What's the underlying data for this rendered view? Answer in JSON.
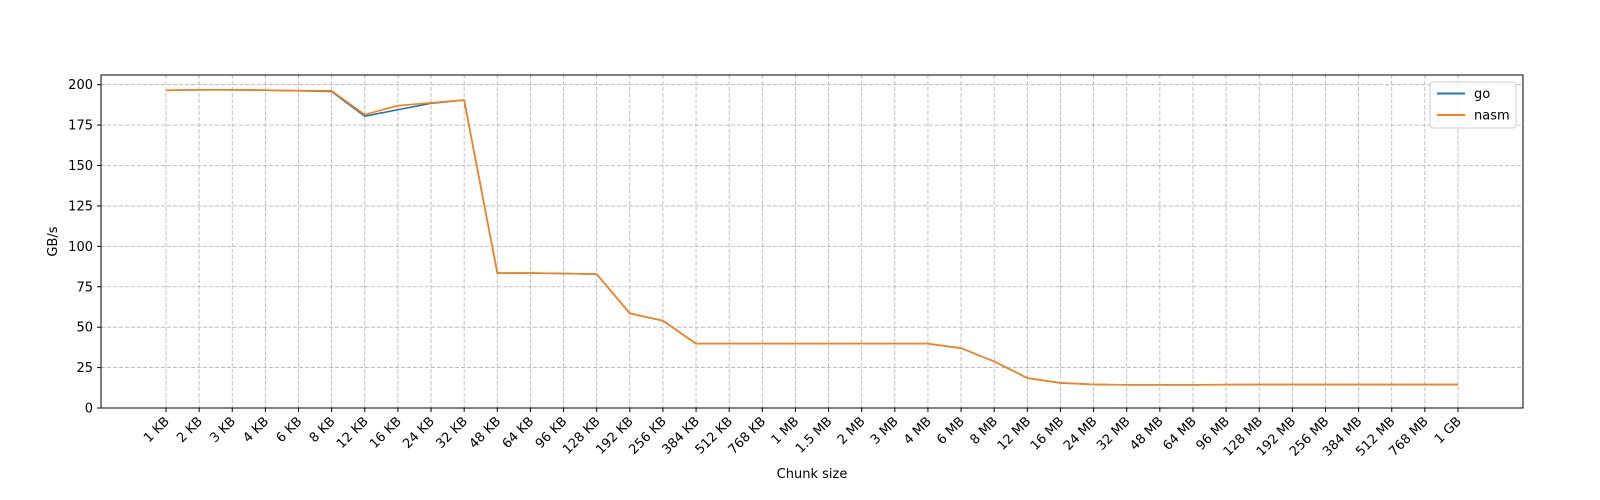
{
  "chart_data": {
    "type": "line",
    "title": "",
    "xlabel": "Chunk size",
    "ylabel": "GB/s",
    "ylim": [
      0,
      206
    ],
    "yticks": [
      0,
      25,
      50,
      75,
      100,
      125,
      150,
      175,
      200
    ],
    "grid": true,
    "legend_position": "top-right",
    "categories": [
      "1 KB",
      "2 KB",
      "3 KB",
      "4 KB",
      "6 KB",
      "8 KB",
      "12 KB",
      "16 KB",
      "24 KB",
      "32 KB",
      "48 KB",
      "64 KB",
      "96 KB",
      "128 KB",
      "192 KB",
      "256 KB",
      "384 KB",
      "512 KB",
      "768 KB",
      "1 MB",
      "1.5 MB",
      "2 MB",
      "3 MB",
      "4 MB",
      "6 MB",
      "8 MB",
      "12 MB",
      "16 MB",
      "24 MB",
      "32 MB",
      "48 MB",
      "64 MB",
      "96 MB",
      "128 MB",
      "192 MB",
      "256 MB",
      "384 MB",
      "512 MB",
      "768 MB",
      "1 GB"
    ],
    "series": [
      {
        "name": "go",
        "color": "#1f77b4",
        "values": [
          196.5,
          196.8,
          196.8,
          196.6,
          196.2,
          195.8,
          180.5,
          184.5,
          188.5,
          190.5,
          83.5,
          83.5,
          83.2,
          82.8,
          58.5,
          54.0,
          39.8,
          39.8,
          39.8,
          39.8,
          39.8,
          39.8,
          39.8,
          39.8,
          37.0,
          28.8,
          18.5,
          15.5,
          14.6,
          14.3,
          14.3,
          14.3,
          14.4,
          14.5,
          14.5,
          14.5,
          14.5,
          14.5,
          14.5,
          14.5
        ]
      },
      {
        "name": "nasm",
        "color": "#ff7f0e",
        "values": [
          196.5,
          196.8,
          196.8,
          196.6,
          196.3,
          196.2,
          181.5,
          187.0,
          188.8,
          190.5,
          83.5,
          83.5,
          83.2,
          82.8,
          58.5,
          54.0,
          39.8,
          39.8,
          39.8,
          39.8,
          39.8,
          39.8,
          39.8,
          39.8,
          37.0,
          28.8,
          18.5,
          15.5,
          14.6,
          14.3,
          14.3,
          14.3,
          14.4,
          14.5,
          14.5,
          14.5,
          14.5,
          14.5,
          14.5,
          14.5
        ]
      }
    ]
  }
}
